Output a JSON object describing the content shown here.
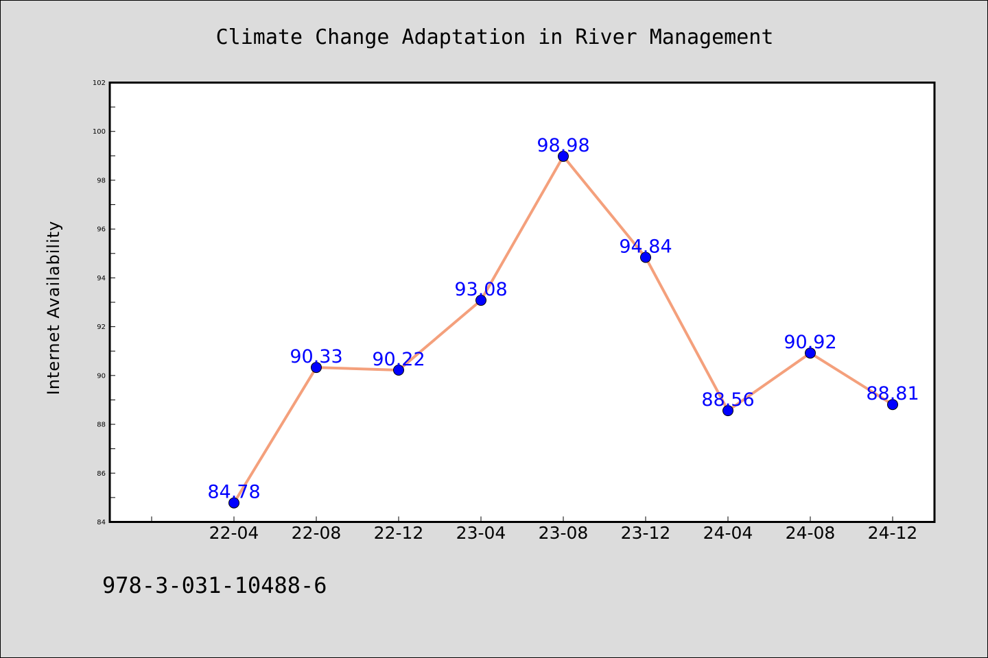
{
  "chart_data": {
    "type": "line",
    "title": "Climate Change Adaptation in River Management",
    "xlabel": "",
    "ylabel": "Internet Availability",
    "categories": [
      "22-04",
      "22-08",
      "22-12",
      "23-04",
      "23-08",
      "23-12",
      "24-04",
      "24-08",
      "24-12"
    ],
    "series": [
      {
        "values": [
          84.78,
          90.33,
          90.22,
          93.08,
          98.98,
          94.84,
          88.56,
          90.92,
          88.81
        ]
      }
    ],
    "data_labels": [
      "84.78",
      "90.33",
      "90.22",
      "93.08",
      "98.98",
      "94.84",
      "88.56",
      "90.92",
      "88.81"
    ],
    "ylim": [
      84,
      102
    ],
    "yticks": [
      "84",
      "86",
      "88",
      "90",
      "92",
      "94",
      "96",
      "98",
      "100",
      "102"
    ],
    "grid": false,
    "legend": "none",
    "annotation": "978-3-031-10488-6",
    "colors": {
      "line": "#f4a07c",
      "marker": "#0000ff",
      "label": "#0000ff",
      "background": "#dcdcdc",
      "plot_background": "#ffffff"
    }
  }
}
